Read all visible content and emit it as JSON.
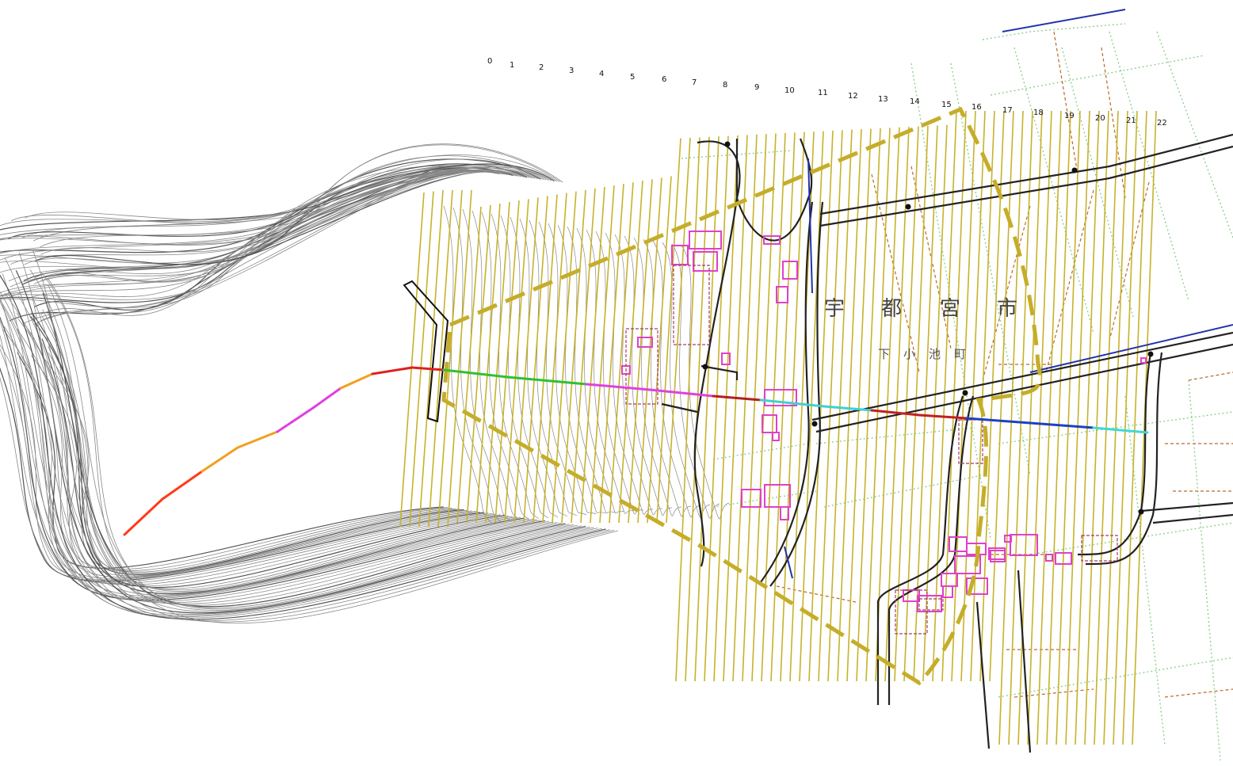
{
  "map": {
    "city_label": [
      "宇",
      "都",
      "宮",
      "市"
    ],
    "town_label": [
      "下",
      "小",
      "池",
      "町"
    ],
    "section_numbers": [
      "0",
      "1",
      "2",
      "3",
      "4",
      "5",
      "6",
      "7",
      "8",
      "9",
      "10",
      "11",
      "12",
      "13",
      "14",
      "15",
      "16",
      "17",
      "18",
      "19",
      "20",
      "21",
      "22"
    ],
    "colors": {
      "hatch": "#c7b22a",
      "boundary": "#c5ad2a",
      "contour": "#888888",
      "road": "#222222",
      "building": "#e040c8",
      "field_border": "#8fd08f",
      "lot_line": "#b86a2a",
      "water": "#2233aa"
    },
    "profile_segments": [
      {
        "color": "#ff3a1a"
      },
      {
        "color": "#f0a020"
      },
      {
        "color": "#e040e0"
      },
      {
        "color": "#f0a020"
      },
      {
        "color": "#e02020"
      },
      {
        "color": "#30c030"
      },
      {
        "color": "#e040e0"
      },
      {
        "color": "#b02020"
      },
      {
        "color": "#40d0d0"
      },
      {
        "color": "#c02020"
      },
      {
        "color": "#2040c0"
      },
      {
        "color": "#40d8d0"
      }
    ]
  }
}
